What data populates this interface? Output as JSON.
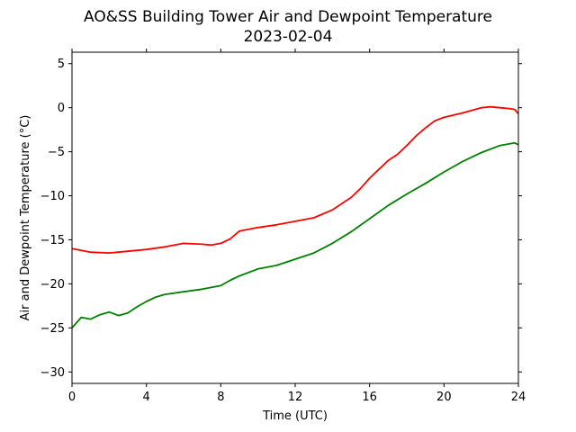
{
  "chart_data": {
    "type": "line",
    "title": "AO&SS Building Tower Air and Dewpoint Temperature",
    "subtitle": "2023-02-04",
    "xlabel": "Time (UTC)",
    "ylabel": "Air and Dewpoint Temperature (°C)",
    "xlim": [
      0,
      24
    ],
    "ylim": [
      -31.3,
      6.3
    ],
    "xticks": [
      0,
      4,
      8,
      12,
      16,
      20,
      24
    ],
    "yticks": [
      -30,
      -25,
      -20,
      -15,
      -10,
      -5,
      0,
      5
    ],
    "ytick_labels": [
      "−30",
      "−25",
      "−20",
      "−15",
      "−10",
      "−5",
      "0",
      "5"
    ],
    "grid": false,
    "series": [
      {
        "color": "#ff0000",
        "x": [
          0,
          1,
          2,
          3,
          4,
          5,
          6,
          7,
          7.5,
          8,
          8.5,
          9,
          9.5,
          10,
          11,
          12,
          13,
          14,
          15,
          15.5,
          16,
          16.5,
          17,
          17.5,
          18,
          18.5,
          19,
          19.5,
          20,
          21,
          22,
          22.5,
          23,
          23.5,
          23.8,
          24
        ],
        "y": [
          -16.0,
          -16.4,
          -16.5,
          -16.3,
          -16.1,
          -15.8,
          -15.4,
          -15.5,
          -15.6,
          -15.4,
          -14.9,
          -14.0,
          -13.8,
          -13.6,
          -13.3,
          -12.9,
          -12.5,
          -11.6,
          -10.2,
          -9.2,
          -8.0,
          -7.0,
          -6.0,
          -5.3,
          -4.3,
          -3.2,
          -2.3,
          -1.5,
          -1.1,
          -0.6,
          0.0,
          0.1,
          0.0,
          -0.1,
          -0.2,
          -0.7
        ]
      },
      {
        "color": "#008000",
        "x": [
          0,
          0.5,
          1,
          1.5,
          2,
          2.5,
          3,
          3.5,
          4,
          4.5,
          5,
          6,
          7,
          8,
          8.5,
          9,
          10,
          11,
          12,
          13,
          14,
          15,
          16,
          17,
          18,
          19,
          20,
          21,
          22,
          23,
          23.8,
          24
        ],
        "y": [
          -25.0,
          -23.8,
          -24.0,
          -23.5,
          -23.2,
          -23.6,
          -23.3,
          -22.6,
          -22.0,
          -21.5,
          -21.2,
          -20.9,
          -20.6,
          -20.2,
          -19.6,
          -19.1,
          -18.3,
          -17.9,
          -17.2,
          -16.5,
          -15.4,
          -14.1,
          -12.6,
          -11.1,
          -9.8,
          -8.6,
          -7.3,
          -6.1,
          -5.1,
          -4.3,
          -4.0,
          -4.2
        ]
      }
    ]
  }
}
